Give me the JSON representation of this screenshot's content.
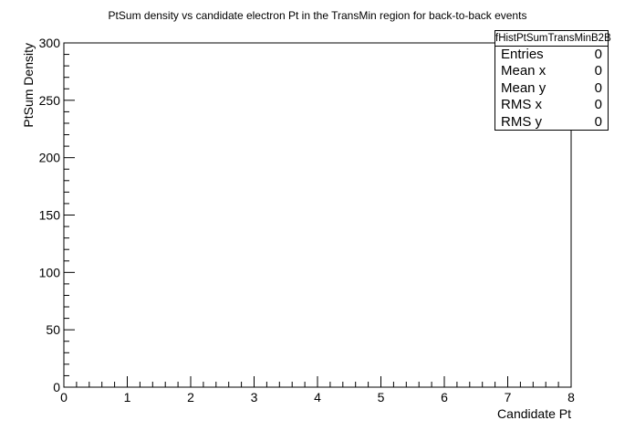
{
  "chart_data": {
    "type": "scatter",
    "title": "PtSum density vs candidate electron Pt in the TransMin region for back-to-back events",
    "xlabel": "Candidate Pt",
    "ylabel": "PtSum Density",
    "xlim": [
      0,
      8
    ],
    "ylim": [
      0,
      300
    ],
    "x_ticks": [
      "0",
      "1",
      "2",
      "3",
      "4",
      "5",
      "6",
      "7",
      "8"
    ],
    "y_ticks": [
      "0",
      "50",
      "100",
      "150",
      "200",
      "250",
      "300"
    ],
    "series": [],
    "grid": false,
    "legend": "none"
  },
  "stats": {
    "name": "fHistPtSumTransMinB2B",
    "rows": [
      {
        "label": "Entries",
        "value": "0"
      },
      {
        "label": "Mean x",
        "value": "0"
      },
      {
        "label": "Mean y",
        "value": "0"
      },
      {
        "label": "RMS x",
        "value": "0"
      },
      {
        "label": "RMS y",
        "value": "0"
      }
    ]
  }
}
